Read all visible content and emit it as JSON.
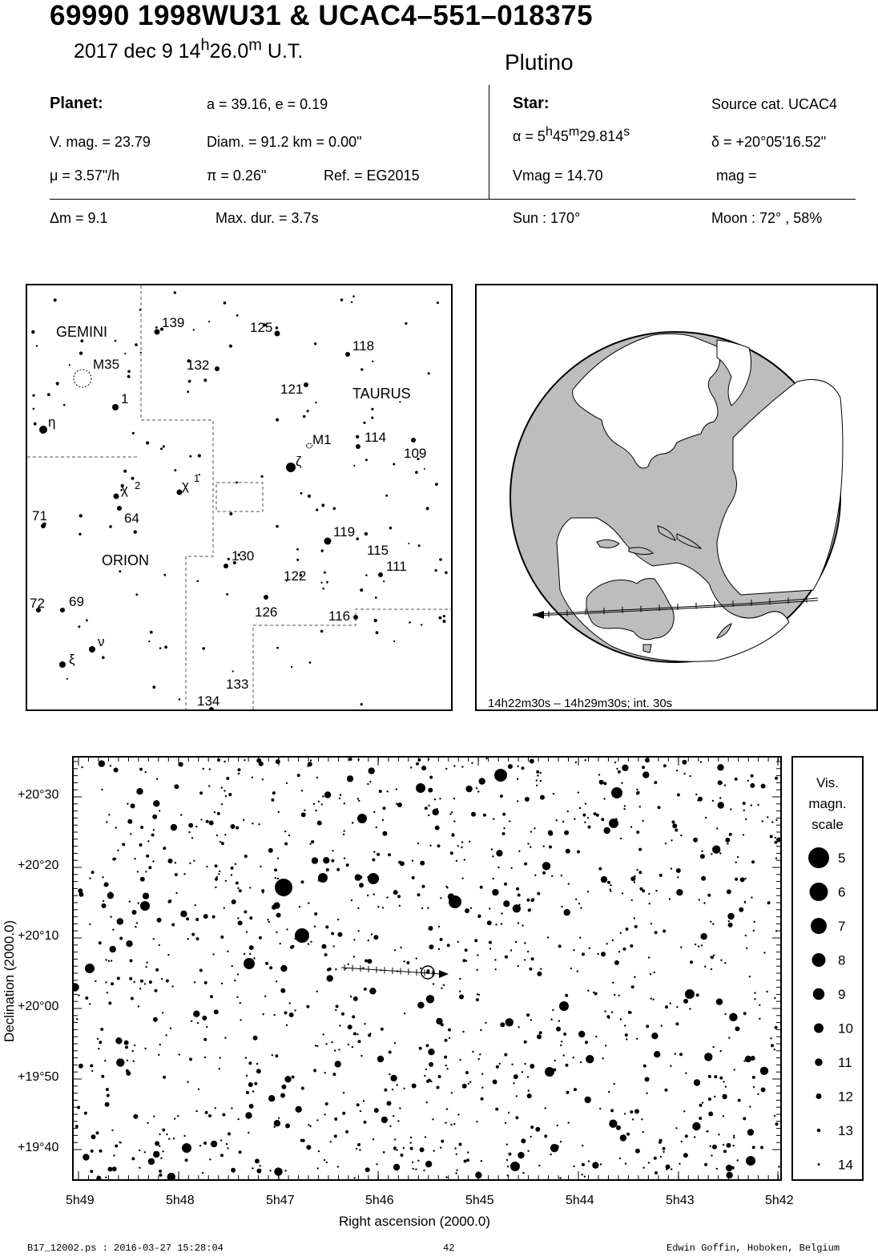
{
  "header": {
    "title": "69990 1998WU31  &  UCAC4–551–018375",
    "date": "2017 dec  9  14",
    "hour_unit": "h",
    "minutes": "26.0",
    "minute_unit": "m",
    "time_suffix": " U.T.",
    "category": "Plutino"
  },
  "planet": {
    "heading": "Planet:",
    "orbit": "a = 39.16, e = 0.19",
    "vmag": "V. mag. = 23.79",
    "diam": "Diam. = 91.2 km = 0.00\"",
    "mu": "μ =  3.57\"/h",
    "pi": "π =  0.26\"",
    "ref": "Ref. = EG2015"
  },
  "star": {
    "heading": "Star:",
    "source": "Source cat.  UCAC4",
    "alpha_prefix": "α =  5",
    "alpha_h": "h",
    "alpha_min": "45",
    "alpha_m": "m",
    "alpha_sec": "29.814",
    "alpha_s": "s",
    "delta": "δ = +20°05'16.52\"",
    "vmag": "Vmag = 14.70",
    "mag": "mag ="
  },
  "event": {
    "dm": "Δm = 9.1",
    "maxdur": "Max. dur. = 3.7s",
    "sun": "Sun : 170°",
    "moon": "Moon :  72° , 58%"
  },
  "finder": {
    "labels": [
      {
        "t": "GEMINI"
      },
      {
        "t": "TAURUS"
      },
      {
        "t": "ORION"
      },
      {
        "t": "M35"
      },
      {
        "t": "M1"
      },
      {
        "t": "139"
      },
      {
        "t": "125"
      },
      {
        "t": "118"
      },
      {
        "t": "132"
      },
      {
        "t": "121"
      },
      {
        "t": "1"
      },
      {
        "t": "η"
      },
      {
        "t": "114"
      },
      {
        "t": "109"
      },
      {
        "t": "ζ"
      },
      {
        "t": "χ"
      },
      {
        "t": "2"
      },
      {
        "t": "χ"
      },
      {
        "t": "1"
      },
      {
        "t": "64"
      },
      {
        "t": "71"
      },
      {
        "t": "119"
      },
      {
        "t": "115"
      },
      {
        "t": "111"
      },
      {
        "t": "130"
      },
      {
        "t": "122"
      },
      {
        "t": "72"
      },
      {
        "t": "69"
      },
      {
        "t": "126"
      },
      {
        "t": "116"
      },
      {
        "t": "ν"
      },
      {
        "t": "ξ"
      },
      {
        "t": "133"
      },
      {
        "t": "134"
      }
    ]
  },
  "globe": {
    "caption": "14h22m30s – 14h29m30s; int. 30s"
  },
  "starchart": {
    "ylabel": "Declination (2000.0)",
    "xlabel": "Right ascension (2000.0)",
    "yticks": [
      "+20°30",
      "+20°20",
      "+20°10",
      "+20°00",
      "+19°50",
      "+19°40"
    ],
    "xticks": [
      "5h49",
      "5h48",
      "5h47",
      "5h46",
      "5h45",
      "5h44",
      "5h43",
      "5h42"
    ]
  },
  "legend": {
    "title1": "Vis.",
    "title2": "magn.",
    "title3": "scale",
    "mags": [
      "5",
      "6",
      "7",
      "8",
      "9",
      "10",
      "11",
      "12",
      "13",
      "14"
    ]
  },
  "footer": {
    "left": "B17_12002.ps : 2016-03-27 15:28:04",
    "page": "42",
    "right": "Edwin Goffin, Hoboken, Belgium"
  }
}
